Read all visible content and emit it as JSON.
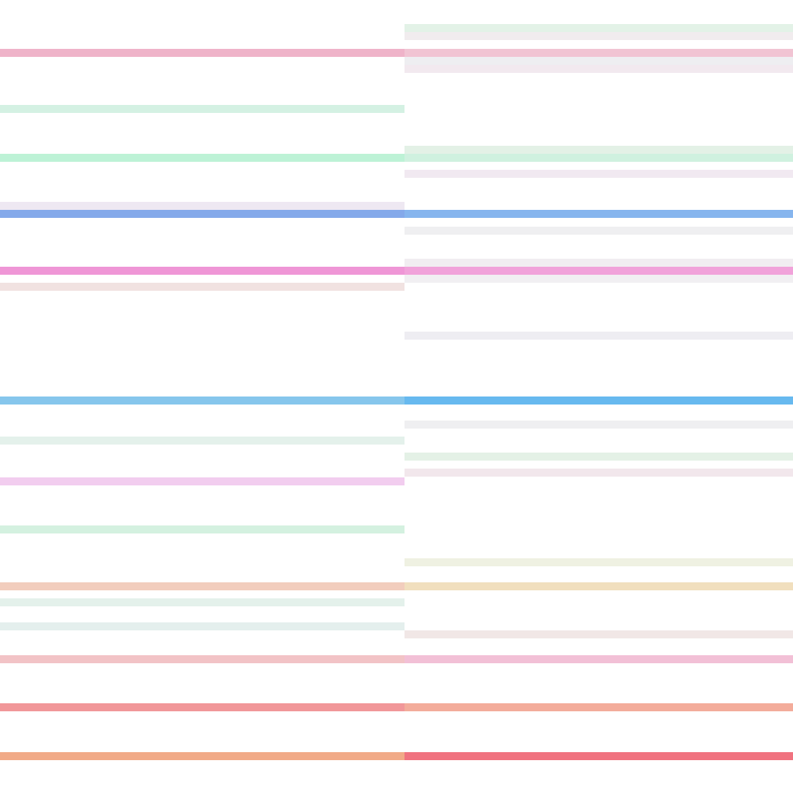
{
  "palette": {
    "background": "#ffffff"
  },
  "left_column": {
    "stripes": [
      {
        "color": "#efb3c9",
        "strength": "strong"
      },
      {
        "color": "#d4f1e3",
        "strength": "faint"
      },
      {
        "color": "#bdf2d6",
        "strength": "medium"
      },
      {
        "color": "#eee8f2",
        "strength": "faint"
      },
      {
        "color": "#84a9ea",
        "strength": "strong"
      },
      {
        "color": "#ef96d6",
        "strength": "strong"
      },
      {
        "color": "#f1e2e1",
        "strength": "faint"
      },
      {
        "color": "#86c6ec",
        "strength": "strong"
      },
      {
        "color": "#e4f1eb",
        "strength": "faint"
      },
      {
        "color": "#f2cdef",
        "strength": "medium"
      },
      {
        "color": "#d4f1e0",
        "strength": "faint"
      },
      {
        "color": "#f2cdbd",
        "strength": "medium"
      },
      {
        "color": "#e4f1eb",
        "strength": "faint"
      },
      {
        "color": "#e4efed",
        "strength": "faint"
      },
      {
        "color": "#f2c3c6",
        "strength": "medium"
      },
      {
        "color": "#f19799",
        "strength": "strong"
      },
      {
        "color": "#f1aa87",
        "strength": "strong"
      }
    ]
  },
  "right_column": {
    "stripes": [
      {
        "color": "#e3f2e7",
        "strength": "faint"
      },
      {
        "color": "#f1ecee",
        "strength": "faint"
      },
      {
        "color": "#f1c4d3",
        "strength": "medium"
      },
      {
        "color": "#eeeef1",
        "strength": "faint"
      },
      {
        "color": "#f2e9ef",
        "strength": "faint"
      },
      {
        "color": "#e3f1e6",
        "strength": "faint"
      },
      {
        "color": "#cff1df",
        "strength": "medium"
      },
      {
        "color": "#f1e9f1",
        "strength": "faint"
      },
      {
        "color": "#86b5ee",
        "strength": "strong"
      },
      {
        "color": "#efeff1",
        "strength": "faint"
      },
      {
        "color": "#f1edf1",
        "strength": "faint"
      },
      {
        "color": "#f1a2da",
        "strength": "strong"
      },
      {
        "color": "#f1eff2",
        "strength": "faint"
      },
      {
        "color": "#eeedf2",
        "strength": "faint"
      },
      {
        "color": "#67b9ef",
        "strength": "strong"
      },
      {
        "color": "#efeff1",
        "strength": "faint"
      },
      {
        "color": "#e4f1e6",
        "strength": "faint"
      },
      {
        "color": "#f2e7ec",
        "strength": "faint"
      },
      {
        "color": "#eff1e2",
        "strength": "faint"
      },
      {
        "color": "#f1dfbe",
        "strength": "medium"
      },
      {
        "color": "#f1e7e6",
        "strength": "faint"
      },
      {
        "color": "#f2c0d6",
        "strength": "medium"
      },
      {
        "color": "#f3ac9b",
        "strength": "strong"
      },
      {
        "color": "#f0727f",
        "strength": "strong"
      }
    ]
  }
}
